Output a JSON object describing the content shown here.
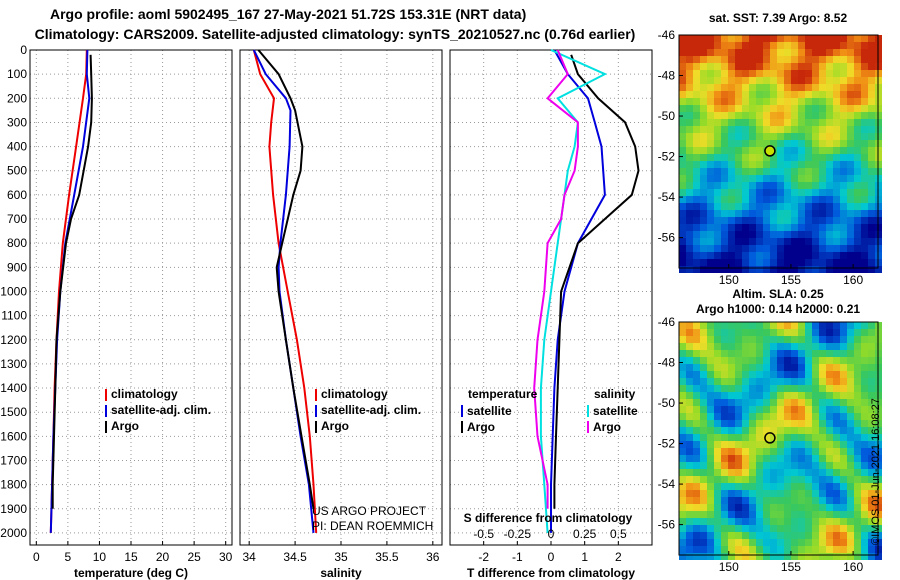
{
  "title": "Argo profile: aoml 5902495_167 27-May-2021 51.72S 153.31E (NRT data)",
  "subtitle": "Climatology: CARS2009. Satellite-adjusted climatology: synTS_20210527.nc (0.76d earlier)",
  "colors": {
    "climatology": "#ee0000",
    "satellite": "#0000dd",
    "argo": "#000000",
    "sal_satellite": "#00e0e0",
    "sal_argo": "#ee00ee"
  },
  "depth_ticks": [
    0,
    100,
    200,
    300,
    400,
    500,
    600,
    700,
    800,
    900,
    1000,
    1100,
    1200,
    1300,
    1400,
    1500,
    1600,
    1700,
    1800,
    1900,
    2000
  ],
  "chart_data": [
    {
      "type": "line",
      "xlabel": "temperature (deg C)",
      "ylim": [
        2050,
        0
      ],
      "xlim": [
        -1,
        31
      ],
      "xticks": [
        0,
        5,
        10,
        15,
        20,
        25,
        30
      ],
      "legend": [
        "climatology",
        "satellite-adj. clim.",
        "Argo"
      ],
      "legend_placement": "lower-right",
      "series": [
        {
          "name": "climatology",
          "y": [
            0,
            100,
            200,
            400,
            600,
            800,
            1000,
            1200,
            1400,
            1600,
            1800,
            2000
          ],
          "values": [
            8.0,
            7.9,
            7.4,
            6.3,
            5.2,
            4.2,
            3.6,
            3.2,
            2.9,
            2.7,
            2.5,
            2.3
          ]
        },
        {
          "name": "satellite-adj. clim.",
          "y": [
            0,
            100,
            200,
            400,
            600,
            800,
            1000,
            1200,
            1400,
            1600,
            1800,
            2000
          ],
          "values": [
            8.1,
            8.0,
            8.4,
            7.4,
            6.0,
            4.6,
            3.8,
            3.3,
            3.0,
            2.7,
            2.5,
            2.3
          ]
        },
        {
          "name": "Argo",
          "y": [
            20,
            100,
            200,
            300,
            400,
            600,
            700,
            800,
            1000,
            1200,
            1400,
            1600,
            1800,
            1900
          ],
          "values": [
            8.6,
            8.7,
            8.8,
            8.7,
            8.2,
            6.8,
            5.5,
            4.7,
            3.8,
            3.2,
            3.0,
            2.8,
            2.6,
            2.6
          ]
        }
      ]
    },
    {
      "type": "line",
      "xlabel": "salinity",
      "ylim": [
        2050,
        0
      ],
      "xlim": [
        33.9,
        36.1
      ],
      "xticks": [
        34,
        34.5,
        35,
        35.5,
        36
      ],
      "legend": [
        "climatology",
        "satellite-adj. clim.",
        "Argo"
      ],
      "legend_placement": "lower-right",
      "annotations": [
        "US ARGO PROJECT",
        "PI: DEAN ROEMMICH"
      ],
      "series": [
        {
          "name": "climatology",
          "y": [
            0,
            100,
            200,
            300,
            400,
            600,
            800,
            1000,
            1200,
            1400,
            1600,
            1800,
            2000
          ],
          "values": [
            34.05,
            34.12,
            34.27,
            34.24,
            34.22,
            34.26,
            34.32,
            34.42,
            34.52,
            34.6,
            34.66,
            34.7,
            34.73
          ]
        },
        {
          "name": "satellite-adj. clim.",
          "y": [
            0,
            100,
            200,
            250,
            400,
            600,
            800,
            900,
            1000,
            1200,
            1400,
            1600,
            1800,
            2000
          ],
          "values": [
            34.05,
            34.18,
            34.4,
            34.45,
            34.44,
            34.4,
            34.34,
            34.32,
            34.33,
            34.4,
            34.48,
            34.56,
            34.65,
            34.7
          ]
        },
        {
          "name": "Argo",
          "y": [
            0,
            100,
            200,
            250,
            400,
            500,
            600,
            800,
            900,
            1000,
            1200,
            1400,
            1600,
            1800,
            1900
          ],
          "values": [
            34.1,
            34.32,
            34.45,
            34.5,
            34.58,
            34.56,
            34.48,
            34.36,
            34.3,
            34.32,
            34.4,
            34.48,
            34.57,
            34.66,
            34.7
          ]
        }
      ]
    },
    {
      "type": "line",
      "xlabel": "T difference from climatology",
      "xlabel_top": "S difference from climatology",
      "ylim": [
        2050,
        0
      ],
      "xlim": [
        -3,
        3
      ],
      "xticks": [
        -2,
        -1,
        0,
        1,
        2
      ],
      "top_xticks": [
        "-0.5",
        "-0.25",
        "0",
        "0.25",
        "0.5"
      ],
      "top_xticks_values": [
        -2,
        -1,
        0,
        1,
        2
      ],
      "legend": [
        "temperature",
        "satellite",
        "Argo",
        "salinity",
        "satellite",
        "Argo"
      ],
      "legend_placement": "lower-center",
      "series": [
        {
          "name": "temperature satellite",
          "y": [
            0,
            100,
            200,
            300,
            400,
            600,
            800,
            1000,
            1200,
            1400,
            1600,
            1800,
            2000
          ],
          "values": [
            0.1,
            0.5,
            1.1,
            1.3,
            1.5,
            1.6,
            0.8,
            0.4,
            0.2,
            0.1,
            0.05,
            0.0,
            0.0
          ]
        },
        {
          "name": "temperature Argo",
          "y": [
            20,
            100,
            200,
            300,
            400,
            500,
            600,
            700,
            800,
            1000,
            1200,
            1400,
            1600,
            1800,
            1900
          ],
          "values": [
            0.6,
            0.8,
            1.4,
            2.2,
            2.5,
            2.6,
            2.4,
            1.6,
            0.8,
            0.3,
            0.25,
            0.2,
            0.15,
            0.1,
            0.1
          ]
        },
        {
          "name": "salinity satellite",
          "y": [
            0,
            100,
            200,
            300,
            400,
            500,
            600,
            800,
            1000,
            1200,
            1400,
            1600,
            1800,
            2000
          ],
          "values": [
            0.0,
            1.6,
            0.2,
            0.8,
            0.7,
            0.5,
            0.4,
            0.2,
            0.0,
            -0.2,
            -0.3,
            -0.3,
            -0.2,
            -0.1
          ]
        },
        {
          "name": "salinity Argo",
          "y": [
            0,
            100,
            200,
            300,
            400,
            500,
            600,
            700,
            800,
            1000,
            1200,
            1400,
            1600,
            1800,
            1900
          ],
          "values": [
            0.2,
            0.5,
            -0.1,
            0.8,
            0.8,
            0.7,
            0.4,
            0.3,
            -0.1,
            -0.2,
            -0.4,
            -0.5,
            -0.4,
            -0.1,
            -0.1
          ]
        }
      ]
    },
    {
      "type": "heatmap",
      "title": "sat. SST: 7.39 Argo: 8.52",
      "xticks": [
        150,
        155,
        160
      ],
      "yticks": [
        -46,
        -48,
        -50,
        -52,
        -54,
        -56
      ],
      "xlim": [
        146,
        162
      ],
      "ylim": [
        -57.5,
        -46
      ],
      "marker": {
        "lon": 153.31,
        "lat": -51.72
      }
    },
    {
      "type": "heatmap",
      "title": "Altim. SLA: 0.25",
      "subtitle": "Argo h1000: 0.14 h2000: 0.21",
      "xticks": [
        150,
        155,
        160
      ],
      "yticks": [
        -46,
        -48,
        -50,
        -52,
        -54,
        -56
      ],
      "xlim": [
        146,
        162
      ],
      "ylim": [
        -57.5,
        -46
      ],
      "marker": {
        "lon": 153.31,
        "lat": -51.72
      }
    }
  ],
  "stamp": "©IMOS 01-Jun-2021 16:08:27"
}
